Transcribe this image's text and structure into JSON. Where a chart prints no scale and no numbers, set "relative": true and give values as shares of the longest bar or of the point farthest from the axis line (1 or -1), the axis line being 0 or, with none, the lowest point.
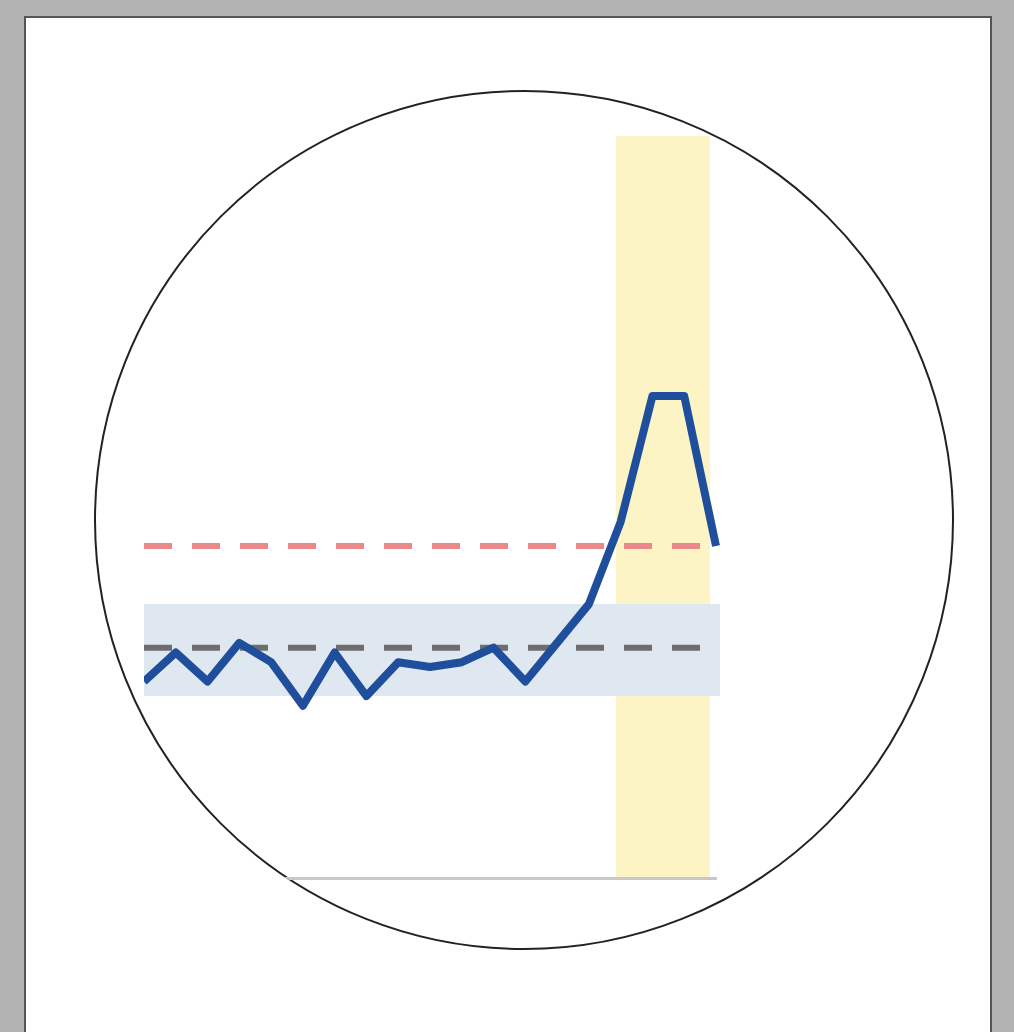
{
  "chart_data": {
    "type": "line",
    "relative": true,
    "categories": [
      null,
      null,
      null,
      null,
      null,
      null,
      null,
      null,
      null,
      null,
      null,
      null,
      null,
      null,
      null,
      null,
      null,
      null,
      null
    ],
    "series": [
      {
        "color": "#1f4e9c",
        "values": [
          0.41,
          0.47,
          0.41,
          0.49,
          0.45,
          0.36,
          0.47,
          0.38,
          0.45,
          0.44,
          0.45,
          0.48,
          0.41,
          0.49,
          0.57,
          0.74,
          1,
          1,
          0.69
        ]
      }
    ],
    "ref_lines": [
      {
        "axis": "y",
        "value": 0.69,
        "color": "#e88a8a",
        "line_style": "dashed"
      },
      {
        "axis": "y",
        "value": 0.48,
        "color": "#6e6e6e",
        "line_style": "dashed"
      }
    ],
    "bands": [
      {
        "axis": "y",
        "from": 0.38,
        "to": 0.57,
        "color": "#dfe7f0"
      }
    ],
    "marker": "none",
    "line_style": "solid",
    "legend": false
  }
}
